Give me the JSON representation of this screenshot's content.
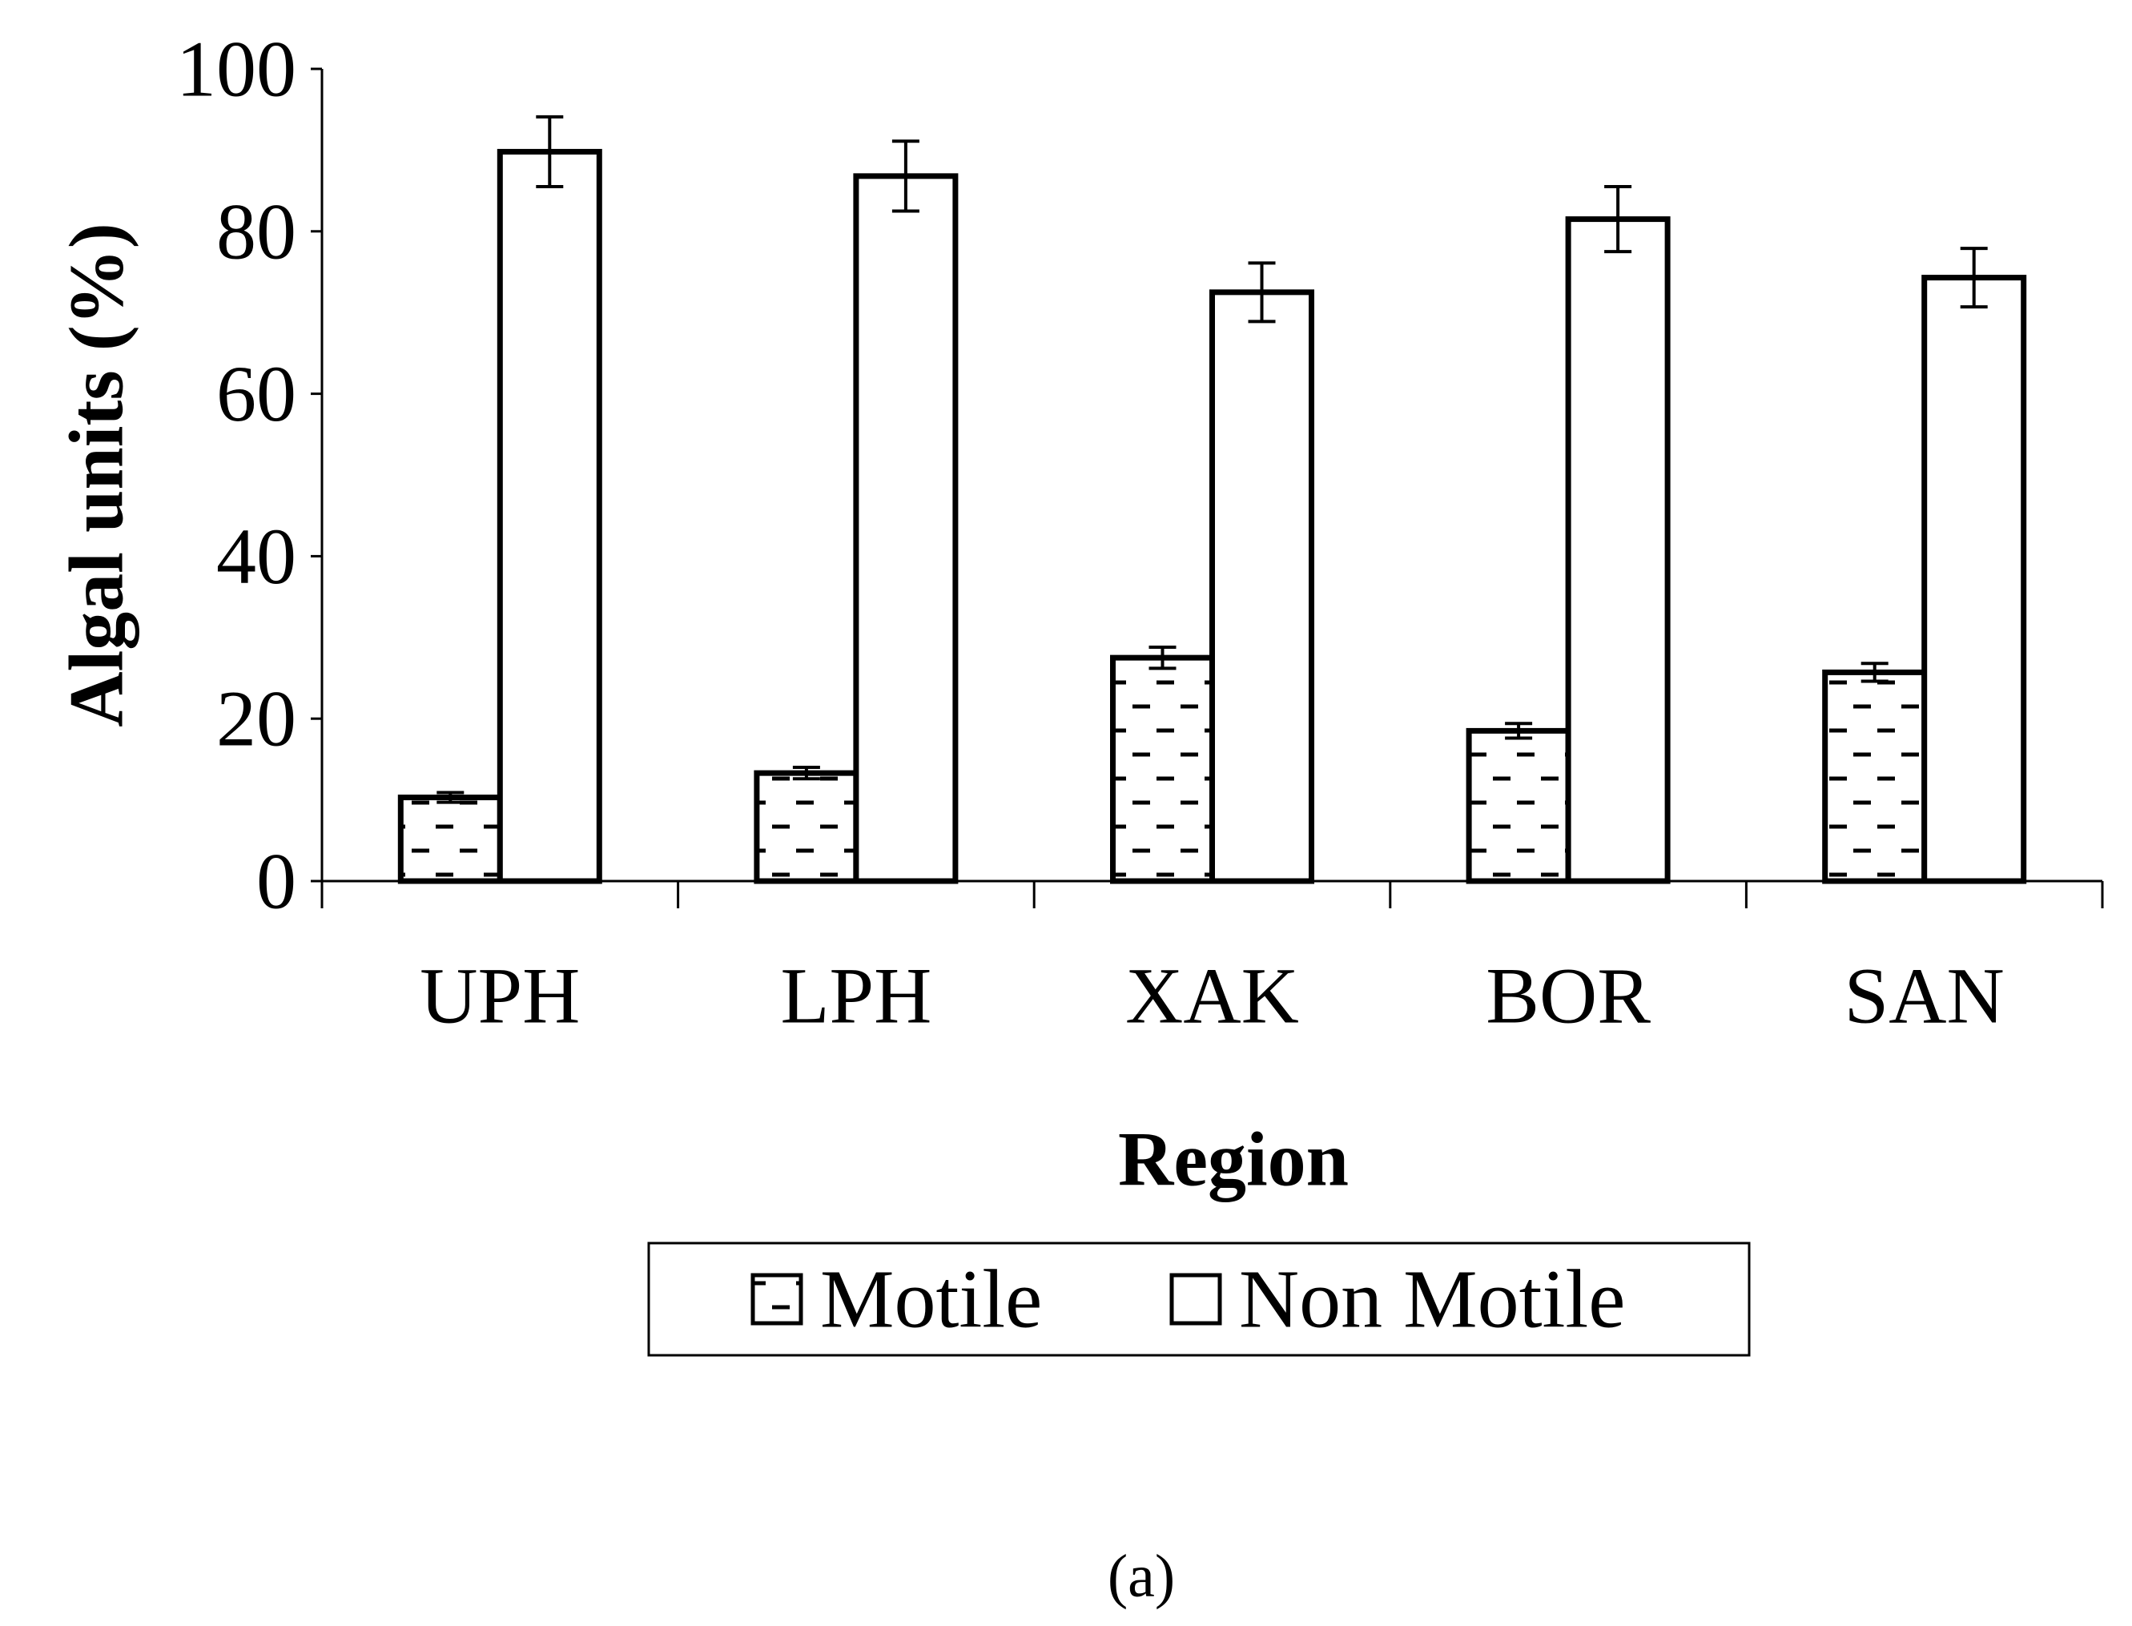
{
  "chart_data": {
    "type": "bar",
    "categories": [
      "UPH",
      "LPH",
      "XAK",
      "BOR",
      "SAN"
    ],
    "series": [
      {
        "name": "Motile",
        "values": [
          10.3,
          13.3,
          27.5,
          18.5,
          25.7
        ],
        "errors": [
          0.6,
          0.7,
          1.3,
          0.9,
          1.1
        ],
        "pattern": "dash-hatch"
      },
      {
        "name": "Non Motile",
        "values": [
          89.8,
          86.8,
          72.5,
          81.5,
          74.3
        ],
        "errors": [
          4.3,
          4.3,
          3.6,
          4.0,
          3.6
        ],
        "pattern": "none"
      }
    ],
    "xlabel": "Region",
    "ylabel": "Algal units (%)",
    "ylim": [
      0,
      100
    ],
    "yticks": [
      0,
      20,
      40,
      60,
      80,
      100
    ],
    "grid": false,
    "legend_position": "bottom",
    "panel_label": "(a)",
    "colors": {
      "bar_fill": "#ffffff",
      "bar_stroke": "#000000",
      "axis": "#000000"
    }
  }
}
